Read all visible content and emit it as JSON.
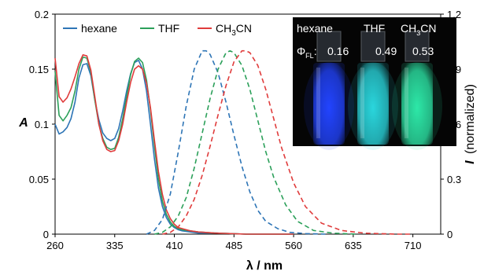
{
  "chart_data": {
    "type": "line",
    "x_axis": {
      "label_symbol": "λ",
      "label_unit": "nm",
      "label": "λ / nm",
      "range": [
        260,
        745
      ],
      "ticks": [
        260,
        335,
        410,
        485,
        560,
        635,
        710
      ]
    },
    "y_left": {
      "label": "A",
      "range": [
        0,
        0.2
      ],
      "ticks": [
        "0",
        "0.05",
        "0.1",
        "0.15",
        "0.2"
      ]
    },
    "y_right": {
      "label_symbol": "I",
      "label_rest": "(normalized)",
      "label": "I (normalized)",
      "range": [
        0,
        1.2
      ],
      "ticks": [
        "0",
        "0.3",
        "0.6",
        "0.9",
        "1.2"
      ]
    },
    "legend": {
      "placement": "top-left",
      "entries": [
        {
          "text": "hexane",
          "color": "#2e75b6"
        },
        {
          "text": "THF",
          "color": "#2ca05a"
        },
        {
          "text": "CH3CN",
          "color": "#e03c3c"
        }
      ]
    },
    "series": [
      {
        "name": "hexane",
        "kind": "absorption",
        "axis": "left",
        "color": "#2e75b6",
        "x": [
          260,
          265,
          270,
          275,
          280,
          285,
          290,
          295,
          300,
          305,
          310,
          315,
          320,
          325,
          330,
          335,
          340,
          345,
          350,
          355,
          360,
          365,
          370,
          375,
          380,
          385,
          390,
          395,
          400,
          405,
          410,
          415,
          420,
          430,
          440,
          460,
          500,
          560
        ],
        "y": [
          0.1,
          0.091,
          0.093,
          0.097,
          0.105,
          0.12,
          0.142,
          0.154,
          0.155,
          0.144,
          0.122,
          0.104,
          0.092,
          0.087,
          0.085,
          0.087,
          0.096,
          0.112,
          0.13,
          0.146,
          0.156,
          0.158,
          0.15,
          0.13,
          0.1,
          0.068,
          0.042,
          0.025,
          0.015,
          0.009,
          0.006,
          0.004,
          0.003,
          0.002,
          0.001,
          0.001,
          0.0,
          0.0
        ]
      },
      {
        "name": "THF",
        "kind": "absorption",
        "axis": "left",
        "color": "#2ca05a",
        "x": [
          260,
          265,
          270,
          275,
          280,
          285,
          290,
          295,
          300,
          305,
          310,
          315,
          320,
          325,
          330,
          335,
          340,
          345,
          350,
          355,
          360,
          365,
          370,
          375,
          380,
          385,
          390,
          395,
          400,
          405,
          410,
          415,
          420,
          430,
          440,
          460,
          500,
          560
        ],
        "y": [
          0.148,
          0.108,
          0.103,
          0.108,
          0.115,
          0.13,
          0.15,
          0.161,
          0.16,
          0.147,
          0.122,
          0.1,
          0.087,
          0.079,
          0.077,
          0.078,
          0.088,
          0.105,
          0.125,
          0.145,
          0.157,
          0.16,
          0.156,
          0.14,
          0.113,
          0.08,
          0.05,
          0.03,
          0.018,
          0.011,
          0.007,
          0.005,
          0.004,
          0.003,
          0.002,
          0.001,
          0.0,
          0.0
        ]
      },
      {
        "name": "CH3CN",
        "kind": "absorption",
        "axis": "left",
        "color": "#e03c3c",
        "x": [
          260,
          265,
          270,
          275,
          280,
          285,
          290,
          295,
          300,
          305,
          310,
          315,
          320,
          325,
          330,
          335,
          340,
          345,
          350,
          355,
          360,
          365,
          370,
          375,
          380,
          385,
          390,
          395,
          400,
          405,
          410,
          415,
          420,
          430,
          440,
          460,
          500,
          560
        ],
        "y": [
          0.16,
          0.125,
          0.12,
          0.124,
          0.132,
          0.143,
          0.155,
          0.163,
          0.162,
          0.149,
          0.125,
          0.1,
          0.085,
          0.077,
          0.075,
          0.076,
          0.085,
          0.1,
          0.12,
          0.138,
          0.15,
          0.153,
          0.15,
          0.137,
          0.115,
          0.085,
          0.057,
          0.036,
          0.022,
          0.014,
          0.009,
          0.006,
          0.005,
          0.003,
          0.002,
          0.001,
          0.0,
          0.0
        ]
      },
      {
        "name": "hexane",
        "kind": "emission",
        "axis": "right",
        "dashed": true,
        "color": "#2e75b6",
        "x": [
          375,
          385,
          395,
          405,
          415,
          425,
          435,
          445,
          450,
          455,
          465,
          475,
          485,
          495,
          505,
          515,
          525,
          540,
          555,
          575,
          600
        ],
        "y": [
          0.0,
          0.02,
          0.08,
          0.22,
          0.45,
          0.7,
          0.9,
          1.0,
          1.0,
          0.98,
          0.88,
          0.72,
          0.54,
          0.37,
          0.23,
          0.13,
          0.07,
          0.03,
          0.01,
          0.003,
          0.0
        ]
      },
      {
        "name": "THF",
        "kind": "emission",
        "axis": "right",
        "dashed": true,
        "color": "#2ca05a",
        "x": [
          385,
          395,
          405,
          415,
          425,
          435,
          445,
          455,
          465,
          475,
          480,
          485,
          495,
          505,
          515,
          525,
          535,
          550,
          565,
          585,
          610,
          640
        ],
        "y": [
          0.0,
          0.01,
          0.04,
          0.1,
          0.2,
          0.36,
          0.55,
          0.74,
          0.9,
          0.99,
          1.0,
          0.99,
          0.92,
          0.79,
          0.62,
          0.45,
          0.31,
          0.16,
          0.07,
          0.02,
          0.005,
          0.0
        ]
      },
      {
        "name": "CH3CN",
        "kind": "emission",
        "axis": "right",
        "dashed": true,
        "color": "#e03c3c",
        "x": [
          395,
          405,
          415,
          425,
          435,
          445,
          455,
          465,
          475,
          485,
          495,
          500,
          505,
          515,
          525,
          535,
          545,
          560,
          575,
          595,
          620,
          650,
          690,
          710
        ],
        "y": [
          0.0,
          0.01,
          0.04,
          0.1,
          0.19,
          0.32,
          0.48,
          0.65,
          0.81,
          0.94,
          1.0,
          1.0,
          0.99,
          0.92,
          0.79,
          0.63,
          0.47,
          0.28,
          0.15,
          0.06,
          0.02,
          0.005,
          0.0,
          0.0
        ]
      }
    ]
  },
  "inset": {
    "solvents": [
      "hexane",
      "THF",
      "CH3CN"
    ],
    "qy_symbol": "Φ",
    "qy_subscript": "FL",
    "qy_values": [
      "0.16",
      "0.49",
      "0.53"
    ],
    "vial_colors": [
      "#2244ff",
      "#2ad6dd",
      "#2de8a8"
    ]
  }
}
